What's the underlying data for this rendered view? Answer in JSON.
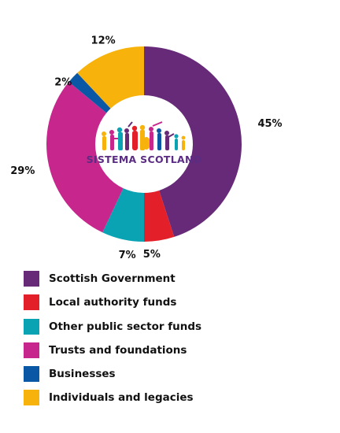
{
  "chart_data": {
    "type": "pie",
    "style": "donut",
    "categories": [
      "Scottish Government",
      "Local authority funds",
      "Other public sector funds",
      "Trusts and foundations",
      "Businesses",
      "Individuals and legacies"
    ],
    "values": [
      45,
      5,
      7,
      29,
      2,
      12
    ],
    "value_labels": [
      "45%",
      "5%",
      "7%",
      "29%",
      "2%",
      "12%"
    ],
    "colors": [
      "#662a78",
      "#e3202a",
      "#0aa3b3",
      "#c7278d",
      "#0a57a6",
      "#f7b30b"
    ],
    "legend_position": "bottom",
    "center_logo_text": "SISTEMA SCOTLAND"
  }
}
